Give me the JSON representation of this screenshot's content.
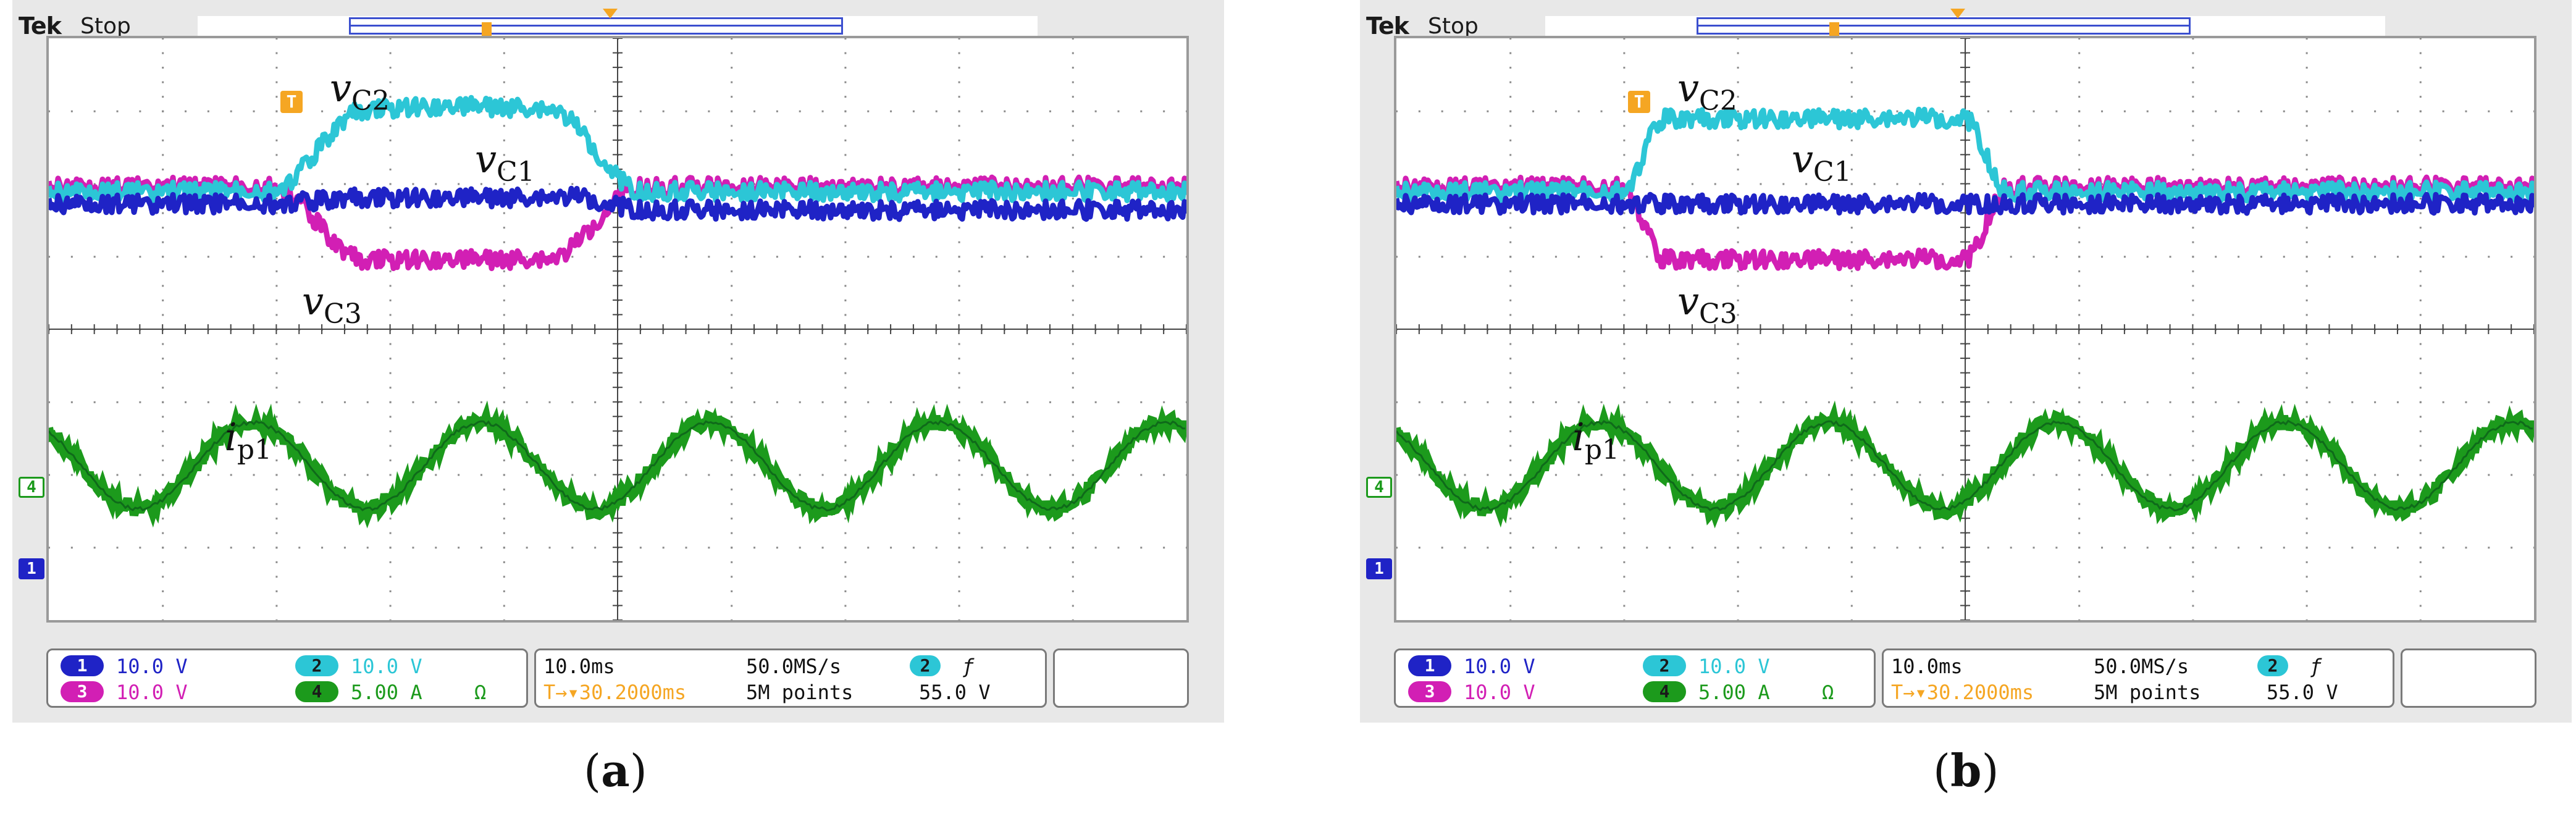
{
  "panels": [
    {
      "header": {
        "brand": "Tek",
        "run_state": "Stop"
      },
      "trigger_marker": "T",
      "channel_markers": {
        "ch4": "4",
        "ch1": "1"
      },
      "traces": {
        "vc2": {
          "italic": "v",
          "sub": "C2"
        },
        "vc1": {
          "italic": "v",
          "sub": "C1"
        },
        "vc3": {
          "italic": "v",
          "sub": "C3"
        },
        "ip1": {
          "italic": "i",
          "sub": "p1"
        }
      },
      "status": {
        "ch1": {
          "num": "1",
          "scale": "10.0 V"
        },
        "ch3": {
          "num": "3",
          "scale": "10.0 V"
        },
        "ch2": {
          "num": "2",
          "scale": "10.0 V"
        },
        "ch4": {
          "num": "4",
          "scale": "5.00 A",
          "unit_icon": "Ω"
        },
        "timebase": "10.0ms",
        "sample_rate": "50.0MS/s",
        "trigger_pos": "T→▾30.2000ms",
        "record_length": "5M points",
        "trigger_src": "2",
        "trigger_slope": "ƒ",
        "trigger_level": "55.0 V"
      },
      "caption": {
        "open": "(",
        "letter": "a",
        "close": ")"
      }
    },
    {
      "header": {
        "brand": "Tek",
        "run_state": "Stop"
      },
      "trigger_marker": "T",
      "channel_markers": {
        "ch4": "4",
        "ch1": "1"
      },
      "traces": {
        "vc2": {
          "italic": "v",
          "sub": "C2"
        },
        "vc1": {
          "italic": "v",
          "sub": "C1"
        },
        "vc3": {
          "italic": "v",
          "sub": "C3"
        },
        "ip1": {
          "italic": "i",
          "sub": "p1"
        }
      },
      "status": {
        "ch1": {
          "num": "1",
          "scale": "10.0 V"
        },
        "ch3": {
          "num": "3",
          "scale": "10.0 V"
        },
        "ch2": {
          "num": "2",
          "scale": "10.0 V"
        },
        "ch4": {
          "num": "4",
          "scale": "5.00 A",
          "unit_icon": "Ω"
        },
        "timebase": "10.0ms",
        "sample_rate": "50.0MS/s",
        "trigger_pos": "T→▾30.2000ms",
        "record_length": "5M points",
        "trigger_src": "2",
        "trigger_slope": "ƒ",
        "trigger_level": "55.0 V"
      },
      "caption": {
        "open": "(",
        "letter": "b",
        "close": ")"
      }
    }
  ],
  "colors": {
    "ch1": "#1f23c6",
    "ch2": "#2cc6d6",
    "ch3": "#d21fb4",
    "ch4": "#1c9a1c",
    "trigger": "#f5a623"
  }
}
